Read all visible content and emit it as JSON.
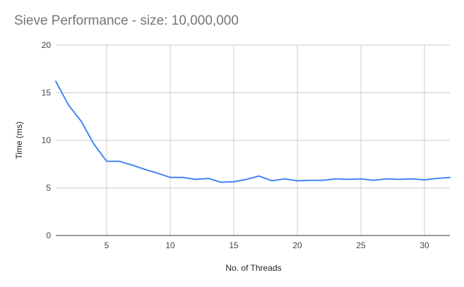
{
  "chart_data": {
    "type": "line",
    "title": "Sieve Performance - size: 10,000,000",
    "xlabel": "No. of Threads",
    "ylabel": "Time (ms)",
    "xlim": [
      1,
      32
    ],
    "ylim": [
      0,
      20
    ],
    "x_ticks": [
      5,
      10,
      15,
      20,
      25,
      30
    ],
    "y_ticks": [
      0,
      5,
      10,
      15,
      20
    ],
    "grid": true,
    "legend": "none",
    "series": [
      {
        "color": "#4285F4",
        "x": [
          1,
          2,
          3,
          4,
          5,
          6,
          7,
          8,
          9,
          10,
          11,
          12,
          13,
          14,
          15,
          16,
          17,
          18,
          19,
          20,
          21,
          22,
          23,
          24,
          25,
          26,
          27,
          28,
          29,
          30,
          31,
          32
        ],
        "values": [
          16.2,
          13.7,
          12.0,
          9.6,
          7.8,
          7.8,
          7.4,
          6.95,
          6.55,
          6.1,
          6.1,
          5.9,
          6.0,
          5.6,
          5.65,
          5.9,
          6.25,
          5.75,
          5.95,
          5.75,
          5.8,
          5.8,
          5.95,
          5.9,
          5.95,
          5.8,
          5.95,
          5.9,
          5.95,
          5.85,
          6.0,
          6.1
        ]
      }
    ]
  }
}
